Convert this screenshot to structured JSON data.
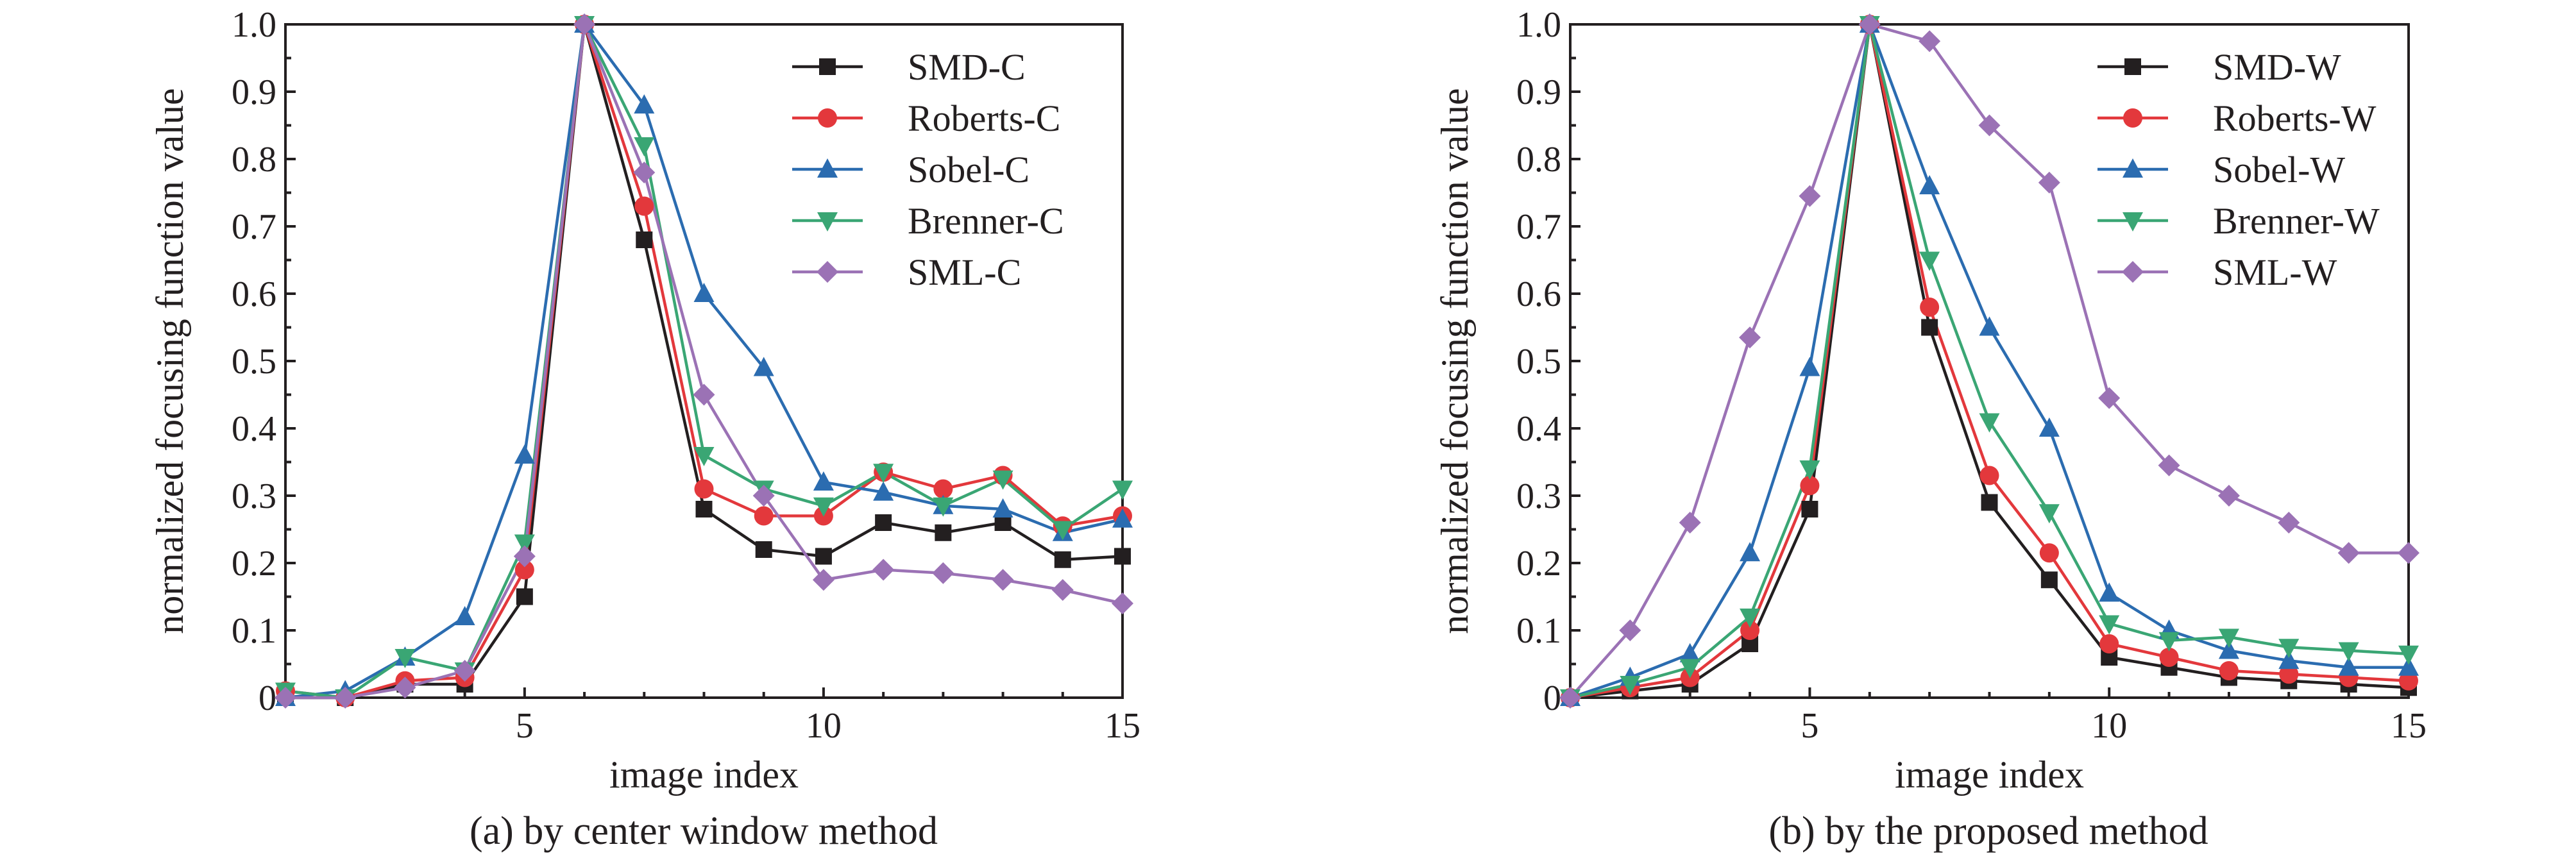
{
  "chart_data": [
    {
      "type": "line",
      "title": "",
      "caption": "(a) by center window method",
      "xlabel": "image index",
      "ylabel": "normalized focusing function value",
      "xlim": [
        1,
        15
      ],
      "ylim": [
        0,
        1.0
      ],
      "x_ticks": [
        5,
        10,
        15
      ],
      "y_ticks": [
        0,
        0.1,
        0.2,
        0.3,
        0.4,
        0.5,
        0.6,
        0.7,
        0.8,
        0.9,
        1.0
      ],
      "y_tick_labels": [
        "0",
        "0.1",
        "0.2",
        "0.3",
        "0.4",
        "0.5",
        "0.6",
        "0.7",
        "0.8",
        "0.9",
        "1.0"
      ],
      "grid": false,
      "legend": "top-right",
      "x": [
        1,
        2,
        3,
        4,
        5,
        6,
        7,
        8,
        9,
        10,
        11,
        12,
        13,
        14,
        15
      ],
      "series": [
        {
          "name": "SMD-C",
          "color": "#231f20",
          "marker": "square",
          "values": [
            0.0,
            0.0,
            0.02,
            0.02,
            0.15,
            1.0,
            0.68,
            0.28,
            0.22,
            0.21,
            0.26,
            0.245,
            0.26,
            0.205,
            0.21
          ]
        },
        {
          "name": "Roberts-C",
          "color": "#e3383c",
          "marker": "circle",
          "values": [
            0.01,
            0.0,
            0.025,
            0.03,
            0.19,
            1.0,
            0.73,
            0.31,
            0.27,
            0.27,
            0.335,
            0.31,
            0.33,
            0.255,
            0.27
          ]
        },
        {
          "name": "Sobel-C",
          "color": "#2b6cb0",
          "marker": "triangle-up",
          "values": [
            0.0,
            0.01,
            0.06,
            0.12,
            0.36,
            1.0,
            0.88,
            0.6,
            0.49,
            0.32,
            0.305,
            0.285,
            0.28,
            0.245,
            0.265
          ]
        },
        {
          "name": "Brenner-C",
          "color": "#3aa674",
          "marker": "triangle-down",
          "values": [
            0.01,
            0.0,
            0.06,
            0.04,
            0.23,
            1.0,
            0.82,
            0.36,
            0.31,
            0.285,
            0.335,
            0.285,
            0.325,
            0.25,
            0.31
          ]
        },
        {
          "name": "SML-C",
          "color": "#9b72b5",
          "marker": "diamond",
          "values": [
            0.0,
            0.0,
            0.015,
            0.04,
            0.21,
            1.0,
            0.78,
            0.45,
            0.3,
            0.175,
            0.19,
            0.185,
            0.175,
            0.16,
            0.14
          ]
        }
      ]
    },
    {
      "type": "line",
      "title": "",
      "caption": "(b) by the proposed method",
      "xlabel": "image index",
      "ylabel": "normalized focusing function value",
      "xlim": [
        1,
        15
      ],
      "ylim": [
        0,
        1.0
      ],
      "x_ticks": [
        5,
        10,
        15
      ],
      "y_ticks": [
        0,
        0.1,
        0.2,
        0.3,
        0.4,
        0.5,
        0.6,
        0.7,
        0.8,
        0.9,
        1.0
      ],
      "y_tick_labels": [
        "0",
        "0.1",
        "0.2",
        "0.3",
        "0.4",
        "0.5",
        "0.6",
        "0.7",
        "0.8",
        "0.9",
        "1.0"
      ],
      "grid": false,
      "legend": "top-right",
      "x": [
        1,
        2,
        3,
        4,
        5,
        6,
        7,
        8,
        9,
        10,
        11,
        12,
        13,
        14,
        15
      ],
      "series": [
        {
          "name": "SMD-W",
          "color": "#231f20",
          "marker": "square",
          "values": [
            0.0,
            0.01,
            0.02,
            0.08,
            0.28,
            1.0,
            0.55,
            0.29,
            0.175,
            0.06,
            0.045,
            0.03,
            0.025,
            0.02,
            0.015
          ]
        },
        {
          "name": "Roberts-W",
          "color": "#e3383c",
          "marker": "circle",
          "values": [
            0.0,
            0.015,
            0.03,
            0.1,
            0.315,
            1.0,
            0.58,
            0.33,
            0.215,
            0.08,
            0.06,
            0.04,
            0.035,
            0.03,
            0.025
          ]
        },
        {
          "name": "Sobel-W",
          "color": "#2b6cb0",
          "marker": "triangle-up",
          "values": [
            0.0,
            0.03,
            0.065,
            0.215,
            0.49,
            1.0,
            0.76,
            0.55,
            0.4,
            0.155,
            0.1,
            0.07,
            0.055,
            0.045,
            0.045
          ]
        },
        {
          "name": "Brenner-W",
          "color": "#3aa674",
          "marker": "triangle-down",
          "values": [
            0.0,
            0.02,
            0.045,
            0.12,
            0.34,
            1.0,
            0.65,
            0.41,
            0.275,
            0.11,
            0.085,
            0.09,
            0.075,
            0.07,
            0.065
          ]
        },
        {
          "name": "SML-W",
          "color": "#9b72b5",
          "marker": "diamond",
          "values": [
            0.0,
            0.1,
            0.26,
            0.535,
            0.745,
            1.0,
            0.975,
            0.85,
            0.765,
            0.445,
            0.345,
            0.3,
            0.26,
            0.215,
            0.215
          ]
        }
      ]
    }
  ]
}
